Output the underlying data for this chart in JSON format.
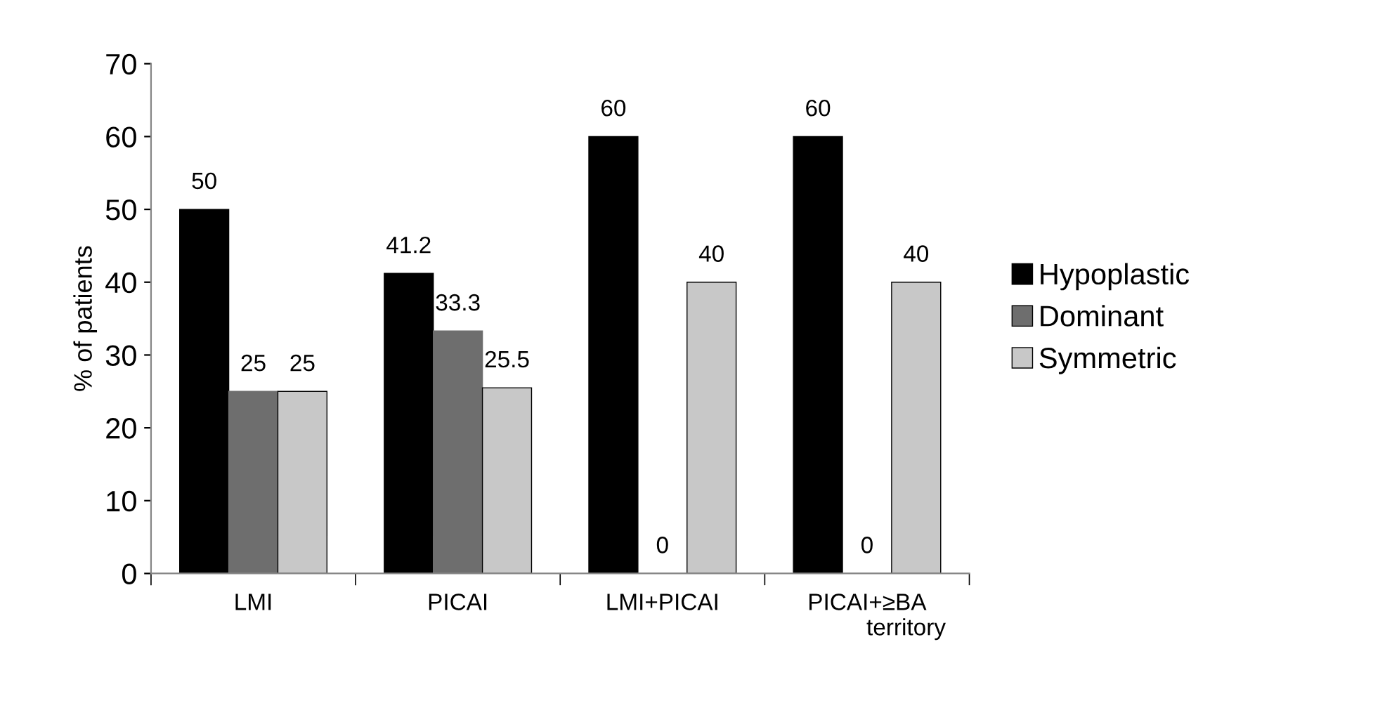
{
  "chart_data": {
    "type": "bar",
    "ylabel": "% of patients",
    "categories": [
      "LMI",
      "PICAI",
      "LMI+PICAI",
      "PICAI+≥BA\n            territory"
    ],
    "series": [
      {
        "name": "Hypoplastic",
        "color": "#000000",
        "values": [
          50,
          41.2,
          60,
          60
        ]
      },
      {
        "name": "Dominant",
        "color": "#6e6e6e",
        "values": [
          25,
          33.3,
          0,
          0
        ]
      },
      {
        "name": "Symmetric",
        "color": "#c8c8c8",
        "values": [
          25,
          25.5,
          40,
          40
        ]
      }
    ],
    "ylim": [
      0,
      70
    ],
    "yticks": [
      0,
      10,
      20,
      30,
      40,
      50,
      60,
      70
    ],
    "data_labels": true,
    "grid": false,
    "legend": "right"
  }
}
